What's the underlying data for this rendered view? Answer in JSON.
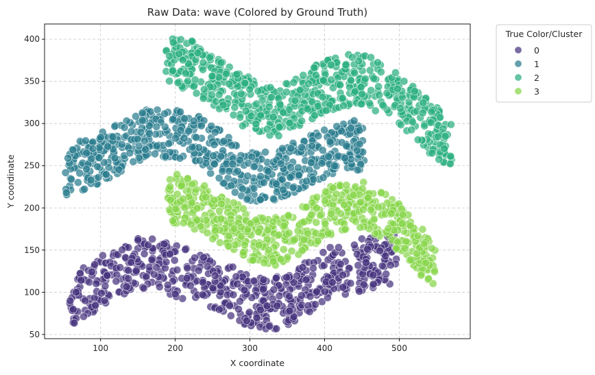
{
  "chart_data": {
    "type": "scatter",
    "title": "Raw Data: wave (Colored by Ground Truth)",
    "xlabel": "X coordinate",
    "ylabel": "Y coordinate",
    "xlim": [
      25,
      595
    ],
    "ylim": [
      45,
      418
    ],
    "xticks": [
      100,
      200,
      300,
      400,
      500
    ],
    "yticks": [
      50,
      100,
      150,
      200,
      250,
      300,
      350,
      400
    ],
    "grid": true,
    "grid_style": "dashed",
    "legend": {
      "title": "True Color/Cluster",
      "placement": "outside-top-right",
      "entries": [
        "0",
        "1",
        "2",
        "3"
      ]
    },
    "series": [
      {
        "name": "0",
        "color": "#46337e",
        "x_range": [
          58,
          498
        ],
        "band_width": 62,
        "centerline": [
          [
            58,
            88
          ],
          [
            80,
            100
          ],
          [
            100,
            112
          ],
          [
            120,
            124
          ],
          [
            140,
            132
          ],
          [
            160,
            136
          ],
          [
            180,
            133
          ],
          [
            200,
            126
          ],
          [
            220,
            120
          ],
          [
            240,
            115
          ],
          [
            260,
            108
          ],
          [
            280,
            98
          ],
          [
            300,
            90
          ],
          [
            320,
            86
          ],
          [
            340,
            88
          ],
          [
            360,
            96
          ],
          [
            380,
            108
          ],
          [
            400,
            120
          ],
          [
            420,
            126
          ],
          [
            440,
            130
          ],
          [
            460,
            135
          ],
          [
            480,
            138
          ],
          [
            498,
            140
          ]
        ]
      },
      {
        "name": "1",
        "color": "#287c8e",
        "x_range": [
          53,
          453
        ],
        "band_width": 60,
        "centerline": [
          [
            53,
            244
          ],
          [
            80,
            252
          ],
          [
            100,
            260
          ],
          [
            120,
            268
          ],
          [
            140,
            278
          ],
          [
            160,
            286
          ],
          [
            180,
            290
          ],
          [
            200,
            288
          ],
          [
            220,
            282
          ],
          [
            240,
            276
          ],
          [
            260,
            262
          ],
          [
            280,
            248
          ],
          [
            300,
            238
          ],
          [
            320,
            236
          ],
          [
            340,
            240
          ],
          [
            360,
            248
          ],
          [
            380,
            256
          ],
          [
            400,
            264
          ],
          [
            420,
            272
          ],
          [
            440,
            274
          ],
          [
            453,
            276
          ]
        ]
      },
      {
        "name": "2",
        "color": "#29af7f",
        "x_range": [
          187,
          570
        ],
        "band_width": 62,
        "centerline": [
          [
            187,
            376
          ],
          [
            200,
            374
          ],
          [
            220,
            370
          ],
          [
            240,
            356
          ],
          [
            260,
            344
          ],
          [
            280,
            332
          ],
          [
            300,
            324
          ],
          [
            320,
            316
          ],
          [
            340,
            314
          ],
          [
            360,
            322
          ],
          [
            380,
            334
          ],
          [
            400,
            344
          ],
          [
            420,
            350
          ],
          [
            440,
            352
          ],
          [
            460,
            350
          ],
          [
            480,
            340
          ],
          [
            500,
            326
          ],
          [
            520,
            312
          ],
          [
            540,
            296
          ],
          [
            560,
            284
          ],
          [
            570,
            279
          ]
        ]
      },
      {
        "name": "3",
        "color": "#86d549",
        "x_range": [
          190,
          548
        ],
        "band_width": 58,
        "centerline": [
          [
            190,
            212
          ],
          [
            210,
            210
          ],
          [
            230,
            202
          ],
          [
            250,
            192
          ],
          [
            270,
            182
          ],
          [
            290,
            172
          ],
          [
            310,
            162
          ],
          [
            330,
            160
          ],
          [
            350,
            164
          ],
          [
            370,
            172
          ],
          [
            390,
            186
          ],
          [
            410,
            198
          ],
          [
            430,
            204
          ],
          [
            450,
            202
          ],
          [
            470,
            196
          ],
          [
            490,
            184
          ],
          [
            510,
            168
          ],
          [
            530,
            148
          ],
          [
            548,
            124
          ]
        ]
      }
    ]
  }
}
